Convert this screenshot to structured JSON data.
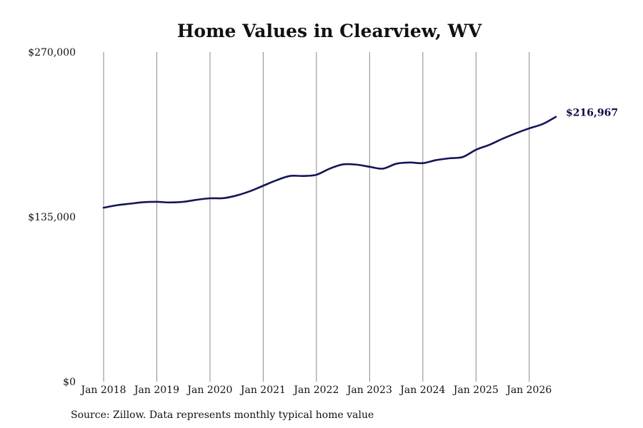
{
  "chart_data": {
    "type": "line",
    "title": "Home Values in Clearview, WV",
    "xlabel": "",
    "ylabel": "",
    "ylim": [
      0,
      270000
    ],
    "y_ticks": [
      {
        "value": 0,
        "label": "$0"
      },
      {
        "value": 135000,
        "label": "$135,000"
      },
      {
        "value": 270000,
        "label": "$270,000"
      }
    ],
    "x_range": [
      "2018-01",
      "2026-07"
    ],
    "x_ticks": [
      {
        "date": "2018-01",
        "label": "Jan 2018"
      },
      {
        "date": "2019-01",
        "label": "Jan 2019"
      },
      {
        "date": "2020-01",
        "label": "Jan 2020"
      },
      {
        "date": "2021-01",
        "label": "Jan 2021"
      },
      {
        "date": "2022-01",
        "label": "Jan 2022"
      },
      {
        "date": "2023-01",
        "label": "Jan 2023"
      },
      {
        "date": "2024-01",
        "label": "Jan 2024"
      },
      {
        "date": "2025-01",
        "label": "Jan 2025"
      },
      {
        "date": "2026-01",
        "label": "Jan 2026"
      }
    ],
    "grid": {
      "vertical": true,
      "horizontal": false
    },
    "end_label": "$216,967",
    "series": [
      {
        "color": "#14145a",
        "points": [
          [
            "2018-01",
            142500
          ],
          [
            "2018-04",
            144500
          ],
          [
            "2018-07",
            145800
          ],
          [
            "2018-10",
            147000
          ],
          [
            "2019-01",
            147300
          ],
          [
            "2019-04",
            146800
          ],
          [
            "2019-07",
            147300
          ],
          [
            "2019-10",
            149000
          ],
          [
            "2020-01",
            150200
          ],
          [
            "2020-04",
            150300
          ],
          [
            "2020-07",
            152500
          ],
          [
            "2020-10",
            156000
          ],
          [
            "2021-01",
            160500
          ],
          [
            "2021-04",
            165000
          ],
          [
            "2021-07",
            168500
          ],
          [
            "2021-10",
            168500
          ],
          [
            "2022-01",
            169500
          ],
          [
            "2022-04",
            174500
          ],
          [
            "2022-07",
            178000
          ],
          [
            "2022-10",
            177800
          ],
          [
            "2023-01",
            176000
          ],
          [
            "2023-04",
            174500
          ],
          [
            "2023-07",
            178500
          ],
          [
            "2023-10",
            179500
          ],
          [
            "2024-01",
            179000
          ],
          [
            "2024-04",
            181500
          ],
          [
            "2024-07",
            183000
          ],
          [
            "2024-10",
            184000
          ],
          [
            "2025-01",
            190000
          ],
          [
            "2025-04",
            194000
          ],
          [
            "2025-07",
            199000
          ],
          [
            "2025-10",
            203500
          ],
          [
            "2026-01",
            207500
          ],
          [
            "2026-04",
            211000
          ],
          [
            "2026-07",
            216967
          ]
        ]
      }
    ]
  },
  "footer": {
    "source": "Source: Zillow. Data represents monthly typical home value"
  }
}
